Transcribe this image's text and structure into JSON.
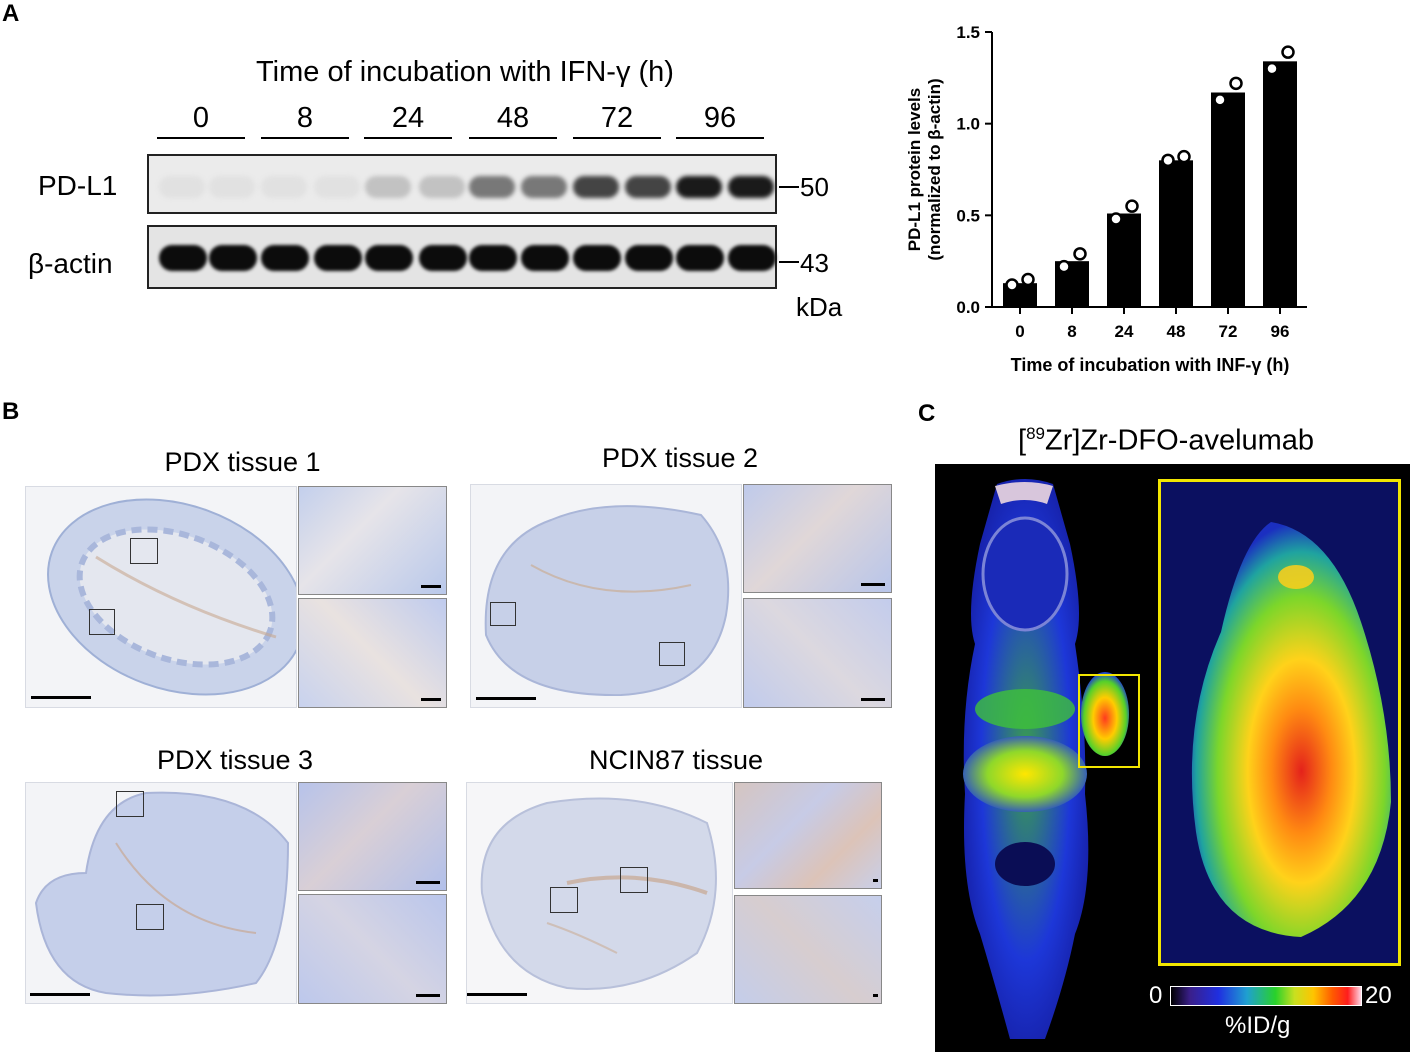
{
  "panels": {
    "a": "A",
    "b": "B",
    "c": "C"
  },
  "western_blot": {
    "title": "Time of incubation with IFN-γ (h)",
    "timepoints": [
      "0",
      "8",
      "24",
      "48",
      "72",
      "96"
    ],
    "rows": [
      {
        "label": "PD-L1",
        "marker": "50"
      },
      {
        "label": "β-actin",
        "marker": "43"
      }
    ],
    "unit": "kDa",
    "pdl1_band_intensity": [
      0.0,
      0.0,
      0.15,
      0.5,
      0.75,
      0.95
    ]
  },
  "chart_data": {
    "type": "bar",
    "categories": [
      "0",
      "8",
      "24",
      "48",
      "72",
      "96"
    ],
    "values": [
      0.13,
      0.25,
      0.51,
      0.8,
      1.17,
      1.34
    ],
    "points": [
      [
        0.12,
        0.15
      ],
      [
        0.22,
        0.29
      ],
      [
        0.48,
        0.55
      ],
      [
        0.8,
        0.82
      ],
      [
        1.13,
        1.22
      ],
      [
        1.3,
        1.39
      ]
    ],
    "ylim": [
      0,
      1.5
    ],
    "yticks": [
      "0.0",
      "0.5",
      "1.0",
      "1.5"
    ],
    "ytick_values": [
      0,
      0.5,
      1.0,
      1.5
    ],
    "ylabel_line1": "PD-L1 protein levels",
    "ylabel_line2": "(normalized to β-actin)",
    "xlabel": "Time of incubation with INF-γ (h)",
    "bar_color": "#000000"
  },
  "ihc": {
    "tissues": [
      {
        "title": "PDX tissue 1"
      },
      {
        "title": "PDX tissue 2"
      },
      {
        "title": "PDX tissue 3"
      },
      {
        "title": "NCIN87 tissue"
      }
    ]
  },
  "pet": {
    "title_sup": "89",
    "title_pre": "[",
    "title_post": "Zr]Zr-DFO-avelumab",
    "colorbar_min": "0",
    "colorbar_max": "20",
    "colorbar_unit": "%ID/g",
    "roi_color": "#f2e600"
  }
}
